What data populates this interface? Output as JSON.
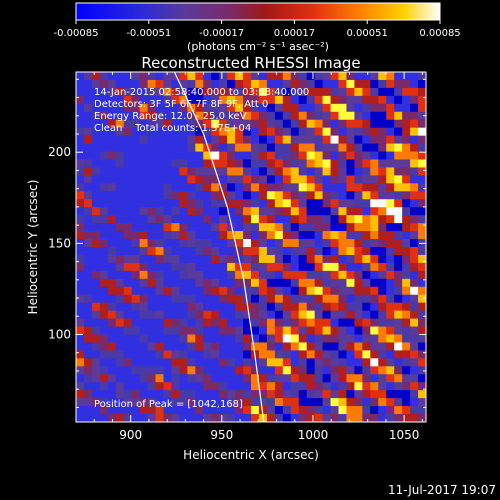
{
  "colorbar": {
    "tick_labels": [
      "-0.00085",
      "-0.00051",
      "-0.00017",
      "0.00017",
      "0.00051",
      "0.00085"
    ],
    "tick_values": [
      -0.00085,
      -0.00051,
      -0.00017,
      0.00017,
      0.00051,
      0.00085
    ],
    "range": [
      -0.00085,
      0.00085
    ],
    "units": "(photons cm⁻² s⁻¹ asec⁻²)"
  },
  "chart_data": {
    "type": "heatmap",
    "title": "Reconstructed RHESSI Image",
    "xlabel": "Heliocentric X (arcsec)",
    "ylabel": "Heliocentric Y (arcsec)",
    "xlim": [
      870,
      1062
    ],
    "ylim": [
      52,
      244
    ],
    "xticks": [
      900,
      950,
      1000,
      1050
    ],
    "yticks": [
      100,
      150,
      200
    ],
    "xtick_labels": [
      "900",
      "950",
      "1000",
      "1050"
    ],
    "ytick_labels": [
      "100",
      "150",
      "200"
    ],
    "annotations": [
      "14-Jan-2015 02:58:40.000 to 03:08:40.000",
      "Detectors: 3F 5F 6F 7F 8F 9F, Att 0",
      "Energy Range: 12.0 - 25.0 keV",
      "Clean    Total counts: 1.37E+04"
    ],
    "peak_label": "Position of Peak = [1042,168]",
    "peak": [
      1042,
      168
    ],
    "limb_curve": [
      [
        924,
        244
      ],
      [
        940,
        210
      ],
      [
        953,
        170
      ],
      [
        962,
        130
      ],
      [
        968,
        90
      ],
      [
        973,
        52
      ]
    ],
    "color_scale": [
      "#0000c8",
      "#3030e0",
      "#4a3aa8",
      "#5a3a9a",
      "#7a2a6a",
      "#b01e1e",
      "#e03010",
      "#ff7a00",
      "#ffc000",
      "#ffff40",
      "#ffffff"
    ],
    "grid": false
  },
  "footer": {
    "date": "11-Jul-2017 19:07"
  }
}
